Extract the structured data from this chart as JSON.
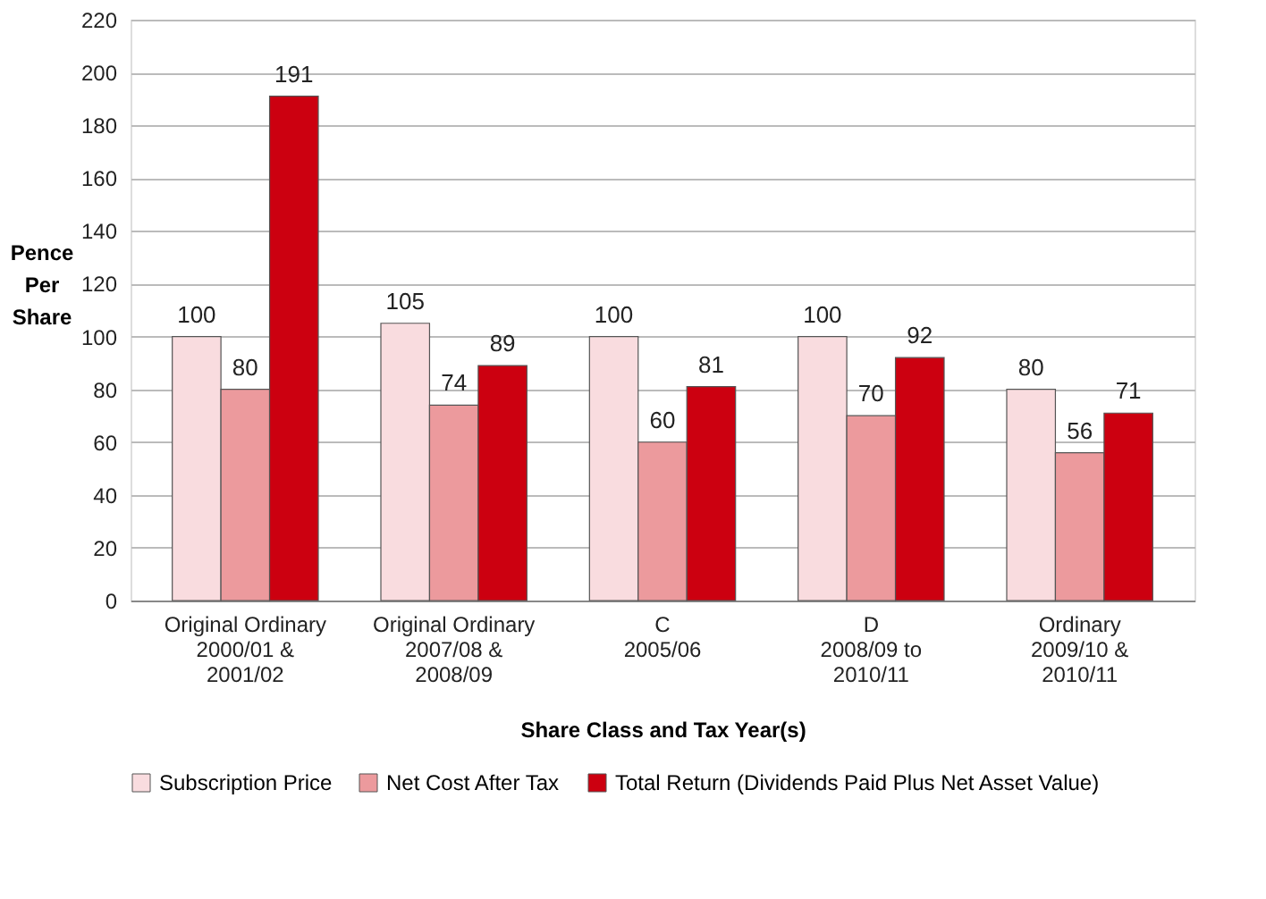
{
  "chart_data": {
    "type": "bar",
    "xlabel": "Share Class and Tax Year(s)",
    "ylabel": "Pence Per Share",
    "categories": [
      "Original Ordinary\n\n2000/01 &\n2001/02",
      "Original Ordinary\n\n2007/08 &\n2008/09",
      "C\n\n2005/06",
      "D\n\n2008/09 to\n2010/11",
      "Ordinary\n\n2009/10 &\n2010/11"
    ],
    "series": [
      {
        "name": "Subscription Price",
        "color": "#f9dcdf",
        "values": [
          100,
          105,
          100,
          100,
          80
        ]
      },
      {
        "name": "Net Cost After Tax",
        "color": "#ec9a9d",
        "values": [
          80,
          74,
          60,
          70,
          56
        ]
      },
      {
        "name": "Total Return (Dividends Paid Plus Net Asset Value)",
        "color": "#cc0010",
        "values": [
          191,
          89,
          81,
          92,
          71
        ]
      }
    ],
    "ylim": [
      0,
      220
    ],
    "yticks": [
      0,
      20,
      40,
      60,
      80,
      100,
      120,
      140,
      160,
      180,
      200,
      220
    ],
    "grid": "y",
    "legend": "bottom",
    "data_labels": true
  }
}
